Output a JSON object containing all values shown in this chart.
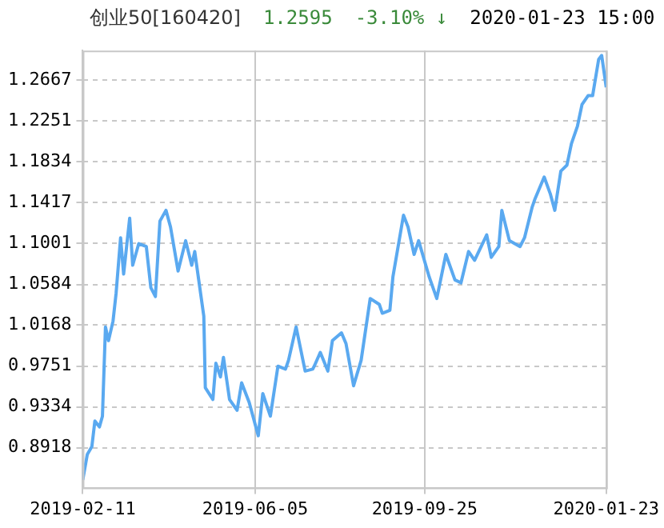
{
  "chart_data": {
    "type": "line",
    "title": "创业50[160420]",
    "annotations": [
      "1.2595",
      "-3.10% ↓",
      "2020-01-23 15:00"
    ],
    "x": [
      "2019-02-11",
      "2019-02-14",
      "2019-02-17",
      "2019-02-19",
      "2019-02-22",
      "2019-02-24",
      "2019-02-26",
      "2019-02-28",
      "2019-03-03",
      "2019-03-05",
      "2019-03-08",
      "2019-03-10",
      "2019-03-14",
      "2019-03-16",
      "2019-03-20",
      "2019-03-25",
      "2019-03-28",
      "2019-03-31",
      "2019-04-03",
      "2019-04-07",
      "2019-04-10",
      "2019-04-15",
      "2019-04-20",
      "2019-04-24",
      "2019-04-26",
      "2019-05-02",
      "2019-05-03",
      "2019-05-08",
      "2019-05-10",
      "2019-05-13",
      "2019-05-15",
      "2019-05-19",
      "2019-05-24",
      "2019-05-27",
      "2019-06-01",
      "2019-06-07",
      "2019-06-10",
      "2019-06-15",
      "2019-06-20",
      "2019-06-25",
      "2019-06-27",
      "2019-07-02",
      "2019-07-08",
      "2019-07-13",
      "2019-07-14",
      "2019-07-18",
      "2019-07-23",
      "2019-07-26",
      "2019-08-01",
      "2019-08-04",
      "2019-08-09",
      "2019-08-14",
      "2019-08-20",
      "2019-08-26",
      "2019-08-28",
      "2019-09-02",
      "2019-09-04",
      "2019-09-11",
      "2019-09-14",
      "2019-09-18",
      "2019-09-21",
      "2019-09-28",
      "2019-10-03",
      "2019-10-09",
      "2019-10-15",
      "2019-10-19",
      "2019-10-24",
      "2019-10-28",
      "2019-11-05",
      "2019-11-08",
      "2019-11-13",
      "2019-11-15",
      "2019-11-20",
      "2019-11-27",
      "2019-11-30",
      "2019-12-05",
      "2019-12-07",
      "2019-12-13",
      "2019-12-17",
      "2019-12-20",
      "2019-12-24",
      "2019-12-28",
      "2019-12-31",
      "2020-01-04",
      "2020-01-07",
      "2020-01-11",
      "2020-01-14",
      "2020-01-18",
      "2020-01-20",
      "2020-01-23"
    ],
    "series": [
      {
        "color": "#5aa9f0",
        "values": [
          0.859,
          0.885,
          0.893,
          0.919,
          0.913,
          0.924,
          1.015,
          1.001,
          1.021,
          1.049,
          1.106,
          1.069,
          1.126,
          1.078,
          1.1,
          1.097,
          1.055,
          1.046,
          1.123,
          1.134,
          1.117,
          1.072,
          1.103,
          1.078,
          1.092,
          1.026,
          0.953,
          0.941,
          0.978,
          0.964,
          0.984,
          0.941,
          0.93,
          0.958,
          0.938,
          0.904,
          0.947,
          0.924,
          0.975,
          0.972,
          0.981,
          1.015,
          0.97,
          0.972,
          0.975,
          0.989,
          0.97,
          1.001,
          1.009,
          0.998,
          0.955,
          0.981,
          1.044,
          1.038,
          1.029,
          1.032,
          1.066,
          1.129,
          1.117,
          1.089,
          1.103,
          1.066,
          1.044,
          1.089,
          1.063,
          1.06,
          1.092,
          1.083,
          1.109,
          1.086,
          1.097,
          1.134,
          1.103,
          1.097,
          1.106,
          1.137,
          1.146,
          1.168,
          1.151,
          1.134,
          1.174,
          1.18,
          1.202,
          1.22,
          1.242,
          1.251,
          1.251,
          1.288,
          1.292,
          1.2595
        ]
      }
    ],
    "xlim": [
      "2019-02-11",
      "2020-01-23"
    ],
    "xticks": [
      "2019-02-11",
      "2019-06-05",
      "2019-09-25",
      "2020-01-23"
    ],
    "ylim": [
      0.851,
      1.297
    ],
    "yticks": [
      0.8918,
      0.9334,
      0.9751,
      1.0168,
      1.0584,
      1.1001,
      1.1417,
      1.1834,
      1.2251,
      1.2667
    ],
    "grid": true,
    "legend": false,
    "marker": "none",
    "line_style": "solid"
  }
}
